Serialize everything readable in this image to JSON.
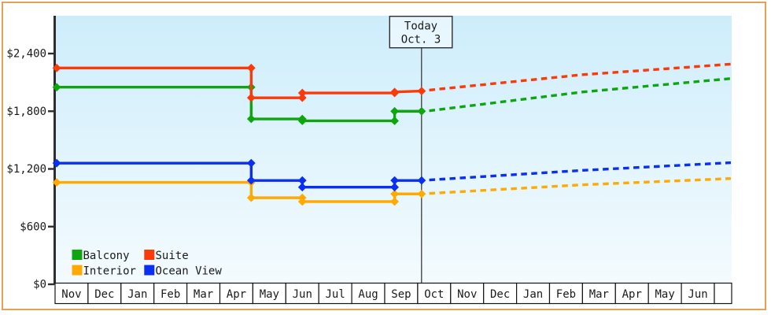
{
  "page": {
    "background_color": "#ffffff",
    "frame_border_color": "#e7a157"
  },
  "chart_data": {
    "type": "line",
    "title": "",
    "x_axis": {
      "unit": "month",
      "categories": [
        "Nov",
        "Dec",
        "Jan",
        "Feb",
        "Mar",
        "Apr",
        "May",
        "Jun",
        "Jul",
        "Aug",
        "Sep",
        "Oct",
        "Nov",
        "Dec",
        "Jan",
        "Feb",
        "Mar",
        "Apr",
        "May",
        "Jun"
      ]
    },
    "y_axis": {
      "range_shown": [
        0,
        2400
      ],
      "ticks": [
        {
          "label": "$0",
          "value": 0
        },
        {
          "label": "$600",
          "value": 600
        },
        {
          "label": "$1,200",
          "value": 1200
        },
        {
          "label": "$1,800",
          "value": 1800
        },
        {
          "label": "$2,400",
          "value": 2400
        }
      ]
    },
    "today": {
      "label": "Today",
      "date": "Oct. 3",
      "months_from_start": 11.12
    },
    "plot_background": {
      "top_color": "#cdedfb",
      "bottom_color": "#f4fbfe"
    },
    "line_style_note": {
      "solid": "historical price",
      "dashed": "projected price after today"
    },
    "series": [
      {
        "name": "Balcony",
        "color": "#0ea50e",
        "z": 2,
        "solid_points_month_value": [
          [
            0.05,
            2050
          ],
          [
            5.95,
            2050
          ],
          [
            5.95,
            1720
          ],
          [
            7.5,
            1720
          ],
          [
            7.5,
            1700
          ],
          [
            10.3,
            1700
          ],
          [
            10.3,
            1800
          ],
          [
            11.12,
            1800
          ]
        ],
        "dashed_projection_month_value": [
          [
            11.35,
            1805
          ],
          [
            16,
            2000
          ],
          [
            20.5,
            2140
          ]
        ]
      },
      {
        "name": "Suite",
        "color": "#fb3a09",
        "z": 3,
        "solid_points_month_value": [
          [
            0.05,
            2250
          ],
          [
            5.95,
            2250
          ],
          [
            5.95,
            1940
          ],
          [
            7.5,
            1940
          ],
          [
            7.5,
            1990
          ],
          [
            10.3,
            1990
          ],
          [
            10.3,
            2000
          ],
          [
            11.12,
            2010
          ]
        ],
        "dashed_projection_month_value": [
          [
            11.35,
            2020
          ],
          [
            16,
            2180
          ],
          [
            20.5,
            2290
          ]
        ]
      },
      {
        "name": "Interior",
        "color": "#ffaa00",
        "z": 0,
        "solid_points_month_value": [
          [
            0.05,
            1060
          ],
          [
            5.95,
            1060
          ],
          [
            5.95,
            900
          ],
          [
            7.5,
            900
          ],
          [
            7.5,
            860
          ],
          [
            10.3,
            860
          ],
          [
            10.3,
            940
          ],
          [
            11.12,
            940
          ]
        ],
        "dashed_projection_month_value": [
          [
            11.35,
            945
          ],
          [
            16,
            1035
          ],
          [
            20.5,
            1100
          ]
        ]
      },
      {
        "name": "Ocean View",
        "color": "#0b2ff2",
        "z": 1,
        "solid_points_month_value": [
          [
            0.05,
            1260
          ],
          [
            5.95,
            1260
          ],
          [
            5.95,
            1080
          ],
          [
            7.5,
            1080
          ],
          [
            7.5,
            1010
          ],
          [
            10.3,
            1010
          ],
          [
            10.3,
            1080
          ],
          [
            11.12,
            1080
          ]
        ],
        "dashed_projection_month_value": [
          [
            11.35,
            1085
          ],
          [
            16,
            1185
          ],
          [
            20.5,
            1265
          ]
        ]
      }
    ]
  }
}
